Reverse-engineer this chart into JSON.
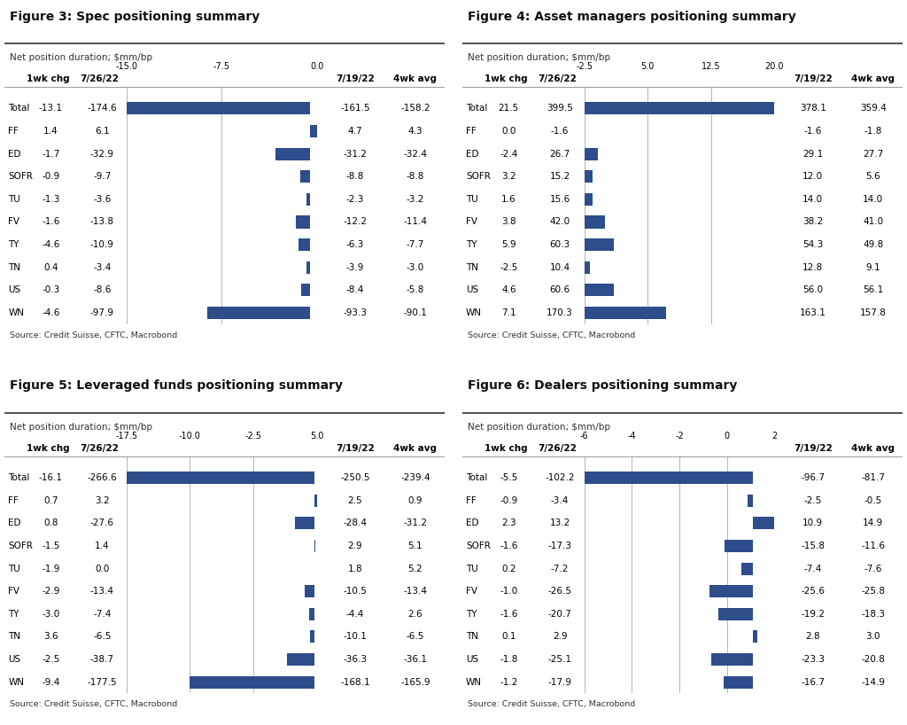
{
  "figures": [
    {
      "title": "Figure 3: Spec positioning summary",
      "subtitle": "Net position duration; $mm/bp",
      "source": "Source: Credit Suisse, CFTC, Macrobond",
      "categories": [
        "Total",
        "FF",
        "ED",
        "SOFR",
        "TU",
        "FV",
        "TY",
        "TN",
        "US",
        "WN"
      ],
      "col1_header": "1wk chg",
      "col2_header": "7/26/22",
      "col3_header": "7/19/22",
      "col4_header": "4wk avg",
      "col1_values": [
        -13.1,
        1.4,
        -1.7,
        -0.9,
        -1.3,
        -1.6,
        -4.6,
        0.4,
        -0.3,
        -4.6
      ],
      "col2_values": [
        -174.6,
        6.1,
        -32.9,
        -9.7,
        -3.6,
        -13.8,
        -10.9,
        -3.4,
        -8.6,
        -97.9
      ],
      "col3_values": [
        -161.5,
        4.7,
        -31.2,
        -8.8,
        -2.3,
        -12.2,
        -6.3,
        -3.9,
        -8.4,
        -93.3
      ],
      "col4_values": [
        -158.2,
        4.3,
        -32.4,
        -8.8,
        -3.2,
        -11.4,
        -7.7,
        -3.0,
        -5.8,
        -90.1
      ],
      "bar_values": [
        -174.6,
        6.1,
        -32.9,
        -9.7,
        -3.6,
        -13.8,
        -10.9,
        -3.4,
        -8.6,
        -97.9
      ],
      "xlim": [
        -15.0,
        0.0
      ],
      "xticks": [
        -15.0,
        -7.5,
        0.0
      ],
      "xtick_labels": [
        "-15.0",
        "-7.5",
        "0.0"
      ]
    },
    {
      "title": "Figure 4: Asset managers positioning summary",
      "subtitle": "Net position duration; $mm/bp",
      "source": "Source: Credit Suisse, CFTC, Macrobond",
      "categories": [
        "Total",
        "FF",
        "ED",
        "SOFR",
        "TU",
        "FV",
        "TY",
        "TN",
        "US",
        "WN"
      ],
      "col1_header": "1wk chg",
      "col2_header": "7/26/22",
      "col3_header": "7/19/22",
      "col4_header": "4wk avg",
      "col1_values": [
        21.5,
        0.0,
        -2.4,
        3.2,
        1.6,
        3.8,
        5.9,
        -2.5,
        4.6,
        7.1
      ],
      "col2_values": [
        399.5,
        -1.6,
        26.7,
        15.2,
        15.6,
        42.0,
        60.3,
        10.4,
        60.6,
        170.3
      ],
      "col3_values": [
        378.1,
        -1.6,
        29.1,
        12.0,
        14.0,
        38.2,
        54.3,
        12.8,
        56.0,
        163.1
      ],
      "col4_values": [
        359.4,
        -1.8,
        27.7,
        5.6,
        14.0,
        41.0,
        49.8,
        9.1,
        56.1,
        157.8
      ],
      "bar_values": [
        399.5,
        -1.6,
        26.7,
        15.2,
        15.6,
        42.0,
        60.3,
        10.4,
        60.6,
        170.3
      ],
      "xlim": [
        -2.5,
        20.0
      ],
      "xticks": [
        -2.5,
        5.0,
        12.5,
        20.0
      ],
      "xtick_labels": [
        "-2.5",
        "5.0",
        "12.5",
        "20.0"
      ]
    },
    {
      "title": "Figure 5: Leveraged funds positioning summary",
      "subtitle": "Net position duration; $mm/bp",
      "source": "Source: Credit Suisse, CFTC, Macrobond",
      "categories": [
        "Total",
        "FF",
        "ED",
        "SOFR",
        "TU",
        "FV",
        "TY",
        "TN",
        "US",
        "WN"
      ],
      "col1_header": "1wk chg",
      "col2_header": "7/26/22",
      "col3_header": "7/19/22",
      "col4_header": "4wk avg",
      "col1_values": [
        -16.1,
        0.7,
        0.8,
        -1.5,
        -1.9,
        -2.9,
        -3.0,
        3.6,
        -2.5,
        -9.4
      ],
      "col2_values": [
        -266.6,
        3.2,
        -27.6,
        1.4,
        0.0,
        -13.4,
        -7.4,
        -6.5,
        -38.7,
        -177.5
      ],
      "col3_values": [
        -250.5,
        2.5,
        -28.4,
        2.9,
        1.8,
        -10.5,
        -4.4,
        -10.1,
        -36.3,
        -168.1
      ],
      "col4_values": [
        -239.4,
        0.9,
        -31.2,
        5.1,
        5.2,
        -13.4,
        2.6,
        -6.5,
        -36.1,
        -165.9
      ],
      "bar_values": [
        -266.6,
        3.2,
        -27.6,
        1.4,
        0.0,
        -13.4,
        -7.4,
        -6.5,
        -38.7,
        -177.5
      ],
      "xlim": [
        -17.5,
        5.0
      ],
      "xticks": [
        -17.5,
        -10.0,
        -2.5,
        5.0
      ],
      "xtick_labels": [
        "-17.5",
        "-10.0",
        "-2.5",
        "5.0"
      ]
    },
    {
      "title": "Figure 6: Dealers positioning summary",
      "subtitle": "Net position duration; $mm/bp",
      "source": "Source: Credit Suisse, CFTC, Macrobond",
      "categories": [
        "Total",
        "FF",
        "ED",
        "SOFR",
        "TU",
        "FV",
        "TY",
        "TN",
        "US",
        "WN"
      ],
      "col1_header": "1wk chg",
      "col2_header": "7/26/22",
      "col3_header": "7/19/22",
      "col4_header": "4wk avg",
      "col1_values": [
        -5.5,
        -0.9,
        2.3,
        -1.6,
        0.2,
        -1.0,
        -1.6,
        0.1,
        -1.8,
        -1.2
      ],
      "col2_values": [
        -102.2,
        -3.4,
        13.2,
        -17.3,
        -7.2,
        -26.5,
        -20.7,
        2.9,
        -25.1,
        -17.9
      ],
      "col3_values": [
        -96.7,
        -2.5,
        10.9,
        -15.8,
        -7.4,
        -25.6,
        -19.2,
        2.8,
        -23.3,
        -16.7
      ],
      "col4_values": [
        -81.7,
        -0.5,
        14.9,
        -11.6,
        -7.6,
        -25.8,
        -18.3,
        3.0,
        -20.8,
        -14.9
      ],
      "bar_values": [
        -102.2,
        -3.4,
        13.2,
        -17.3,
        -7.2,
        -26.5,
        -20.7,
        2.9,
        -25.1,
        -17.9
      ],
      "xlim": [
        -6.0,
        2.0
      ],
      "xticks": [
        -6,
        -4,
        -2,
        0,
        2
      ],
      "xtick_labels": [
        "-6",
        "-4",
        "-2",
        "0",
        "2"
      ]
    }
  ],
  "bar_color": "#2d4d8b",
  "background_color": "#ffffff"
}
